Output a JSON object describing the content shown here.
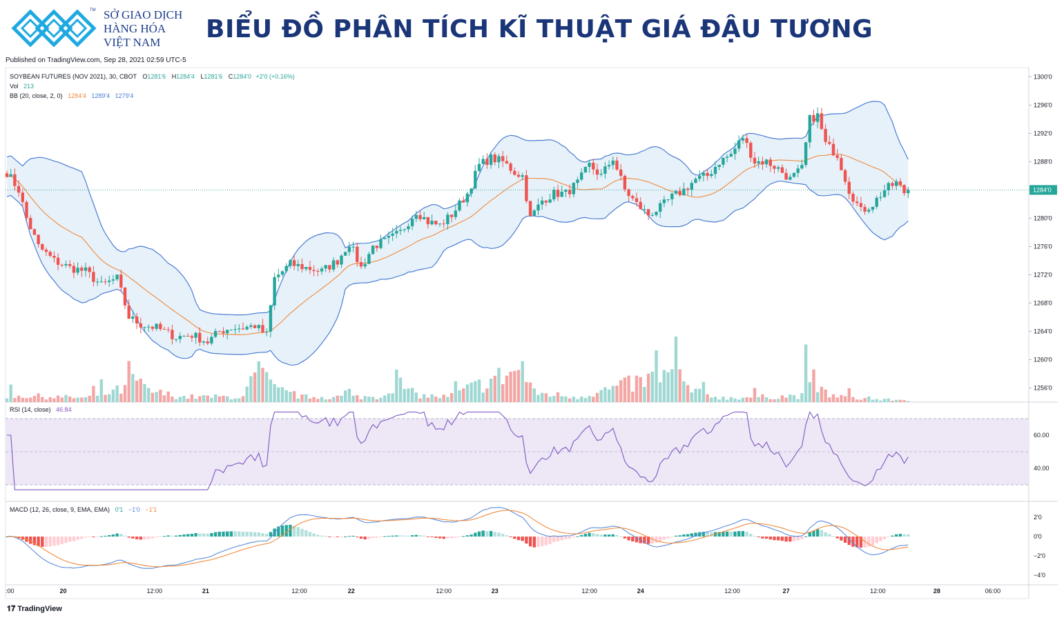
{
  "header": {
    "org_line1": "SỞ GIAO DỊCH",
    "org_line2": "HÀNG HÓA",
    "org_line3": "VIỆT NAM",
    "tm": "TM",
    "title": "BIỂU ĐỒ PHÂN TÍCH KĨ THUẬT GIÁ ĐẬU TƯƠNG"
  },
  "published": "Published on TradingView.com, Sep 28, 2021 02:59 UTC-5",
  "footer_brand": "TradingView",
  "legend": {
    "symbol": "SOYBEAN FUTURES (NOV 2021), 30, CBOT",
    "o_label": "O",
    "o_val": "1281'6",
    "h_label": "H",
    "h_val": "1284'4",
    "l_label": "L",
    "l_val": "1281'6",
    "c_label": "C",
    "c_val": "1284'0",
    "change": "+2'0 (+0.16%)",
    "vol_label": "Vol",
    "vol_val": "213",
    "bb_label": "BB (20, close, 2, 0)",
    "bb_mid": "1284'4",
    "bb_up": "1289'4",
    "bb_low": "1279'4",
    "rsi_label": "RSI (14, close)",
    "rsi_val": "46.84",
    "macd_label": "MACD (12, 26, close, 9, EMA, EMA)",
    "macd_hist": "0'1",
    "macd_line": "−1'0",
    "macd_signal": "−1'1"
  },
  "colors": {
    "up": "#26a69a",
    "down": "#ef5350",
    "bb_band": "#4a7dd4",
    "bb_basis": "#ef8a3c",
    "bb_fill": "#e3eef8",
    "rsi_line": "#7e57c2",
    "rsi_fill": "#ede7f6",
    "macd_line": "#5b8bd9",
    "macd_signal": "#ef8a3c",
    "price_tag": "#26a69a"
  },
  "chart_data": {
    "type": "candlestick",
    "title": "SOYBEAN FUTURES (NOV 2021), 30, CBOT",
    "y_ticks": [
      "1300'0",
      "1296'0",
      "1292'0",
      "1288'0",
      "1284'0",
      "1280'0",
      "1276'0",
      "1272'0",
      "1268'0",
      "1264'0",
      "1260'0",
      "1256'0"
    ],
    "y_tick_values": [
      1300,
      1296,
      1292,
      1288,
      1284,
      1280,
      1276,
      1272,
      1268,
      1264,
      1260,
      1256
    ],
    "ylim": [
      1254,
      1301.5
    ],
    "last_price": 1284,
    "last_price_label": "1284'0",
    "x_ticks": [
      ":00",
      "20",
      "12:00",
      "21",
      "12:00",
      "22",
      "12:00",
      "23",
      "12:00",
      "24",
      "12:00",
      "27",
      "12:00",
      "28",
      "06:00"
    ],
    "x_tick_bold": [
      false,
      true,
      false,
      true,
      false,
      true,
      false,
      true,
      false,
      true,
      false,
      true,
      false,
      true,
      false
    ],
    "price_anchors": [
      [
        0,
        1286.5
      ],
      [
        3,
        1284
      ],
      [
        5,
        1280
      ],
      [
        8,
        1276
      ],
      [
        12,
        1274
      ],
      [
        16,
        1273
      ],
      [
        20,
        1272.5
      ],
      [
        24,
        1270.5
      ],
      [
        28,
        1271.5
      ],
      [
        31,
        1266
      ],
      [
        34,
        1265
      ],
      [
        38,
        1264.5
      ],
      [
        43,
        1263.2
      ],
      [
        47,
        1263.5
      ],
      [
        51,
        1262.5
      ],
      [
        54,
        1264
      ],
      [
        57,
        1264.5
      ],
      [
        60,
        1264.5
      ],
      [
        63,
        1264.8
      ],
      [
        66,
        1263.5
      ],
      [
        68,
        1271.5
      ],
      [
        72,
        1273.5
      ],
      [
        76,
        1273
      ],
      [
        80,
        1272.5
      ],
      [
        84,
        1274
      ],
      [
        87,
        1276.5
      ],
      [
        90,
        1273
      ],
      [
        93,
        1276
      ],
      [
        97,
        1277
      ],
      [
        100,
        1278
      ],
      [
        104,
        1281
      ],
      [
        107,
        1279.5
      ],
      [
        110,
        1279
      ],
      [
        113,
        1280.5
      ],
      [
        117,
        1283.5
      ],
      [
        120,
        1287.5
      ],
      [
        123,
        1288.5
      ],
      [
        126,
        1288
      ],
      [
        129,
        1286.5
      ],
      [
        131,
        1286
      ],
      [
        133,
        1280
      ],
      [
        136,
        1282.5
      ],
      [
        139,
        1283.5
      ],
      [
        142,
        1283.5
      ],
      [
        145,
        1285
      ],
      [
        148,
        1287.5
      ],
      [
        151,
        1286
      ],
      [
        154,
        1288.5
      ],
      [
        157,
        1284
      ],
      [
        160,
        1282
      ],
      [
        163,
        1280.5
      ],
      [
        166,
        1281.5
      ],
      [
        169,
        1283
      ],
      [
        172,
        1284
      ],
      [
        175,
        1285.5
      ],
      [
        178,
        1286
      ],
      [
        181,
        1288
      ],
      [
        184,
        1289
      ],
      [
        187,
        1291.5
      ],
      [
        190,
        1288
      ],
      [
        193,
        1288
      ],
      [
        196,
        1287
      ],
      [
        199,
        1285.5
      ],
      [
        202,
        1287
      ],
      [
        204,
        1294
      ],
      [
        206,
        1294.5
      ],
      [
        208,
        1290.5
      ],
      [
        211,
        1289
      ],
      [
        214,
        1284
      ],
      [
        217,
        1281
      ],
      [
        220,
        1282
      ],
      [
        223,
        1284
      ],
      [
        226,
        1285
      ],
      [
        229,
        1283
      ]
    ],
    "volume_anchors": [
      [
        0,
        13
      ],
      [
        20,
        8
      ],
      [
        30,
        25
      ],
      [
        31,
        55
      ],
      [
        35,
        25
      ],
      [
        38,
        18
      ],
      [
        45,
        10
      ],
      [
        60,
        10
      ],
      [
        64,
        60
      ],
      [
        66,
        40
      ],
      [
        68,
        25
      ],
      [
        75,
        10
      ],
      [
        95,
        10
      ],
      [
        99,
        45
      ],
      [
        102,
        20
      ],
      [
        106,
        12
      ],
      [
        112,
        10
      ],
      [
        131,
        65
      ],
      [
        134,
        18
      ],
      [
        145,
        10
      ],
      [
        170,
        55
      ],
      [
        174,
        20
      ],
      [
        182,
        8
      ],
      [
        202,
        12
      ],
      [
        203,
        75
      ],
      [
        206,
        25
      ],
      [
        210,
        12
      ],
      [
        220,
        5
      ],
      [
        229,
        4
      ]
    ],
    "rsi_ticks": [
      "60.00",
      "40.00"
    ],
    "rsi_tick_values": [
      60,
      40
    ],
    "rsi_bounds": [
      70,
      30
    ],
    "rsi_last": 46.84,
    "macd_ticks": [
      "2'0",
      "0'0",
      "−2'0",
      "−4'0"
    ],
    "macd_tick_values": [
      2,
      0,
      -2,
      -4
    ]
  }
}
